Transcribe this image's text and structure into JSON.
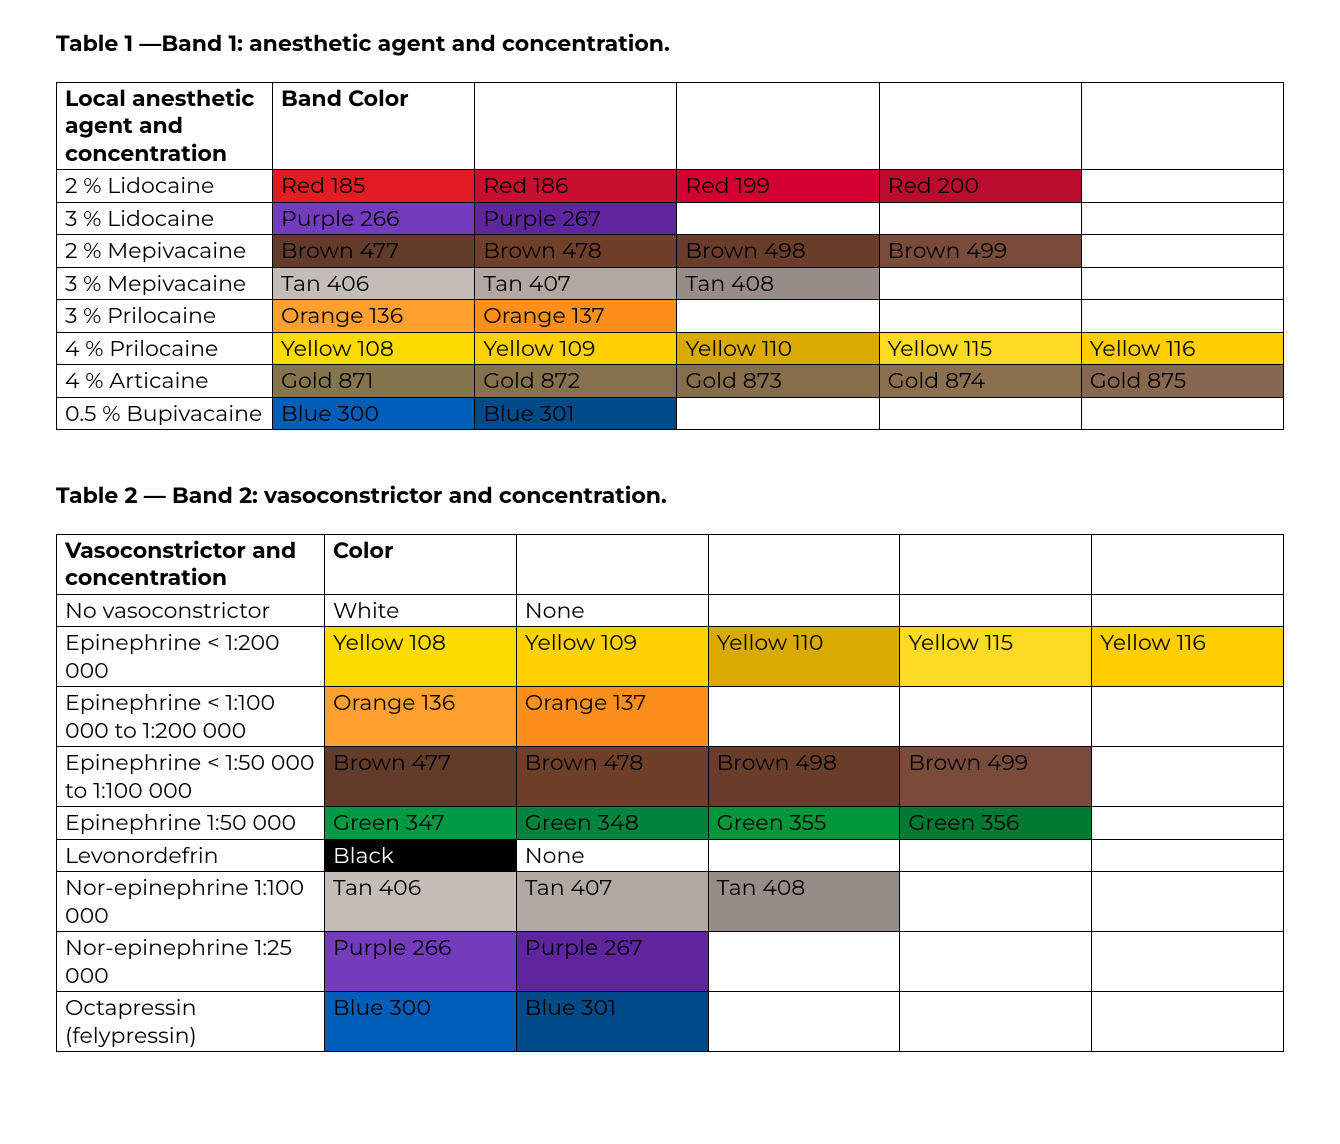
{
  "table1": {
    "title": "Table 1 —Band 1: anesthetic agent and concentration.",
    "header": [
      "Local anesthetic agent and concentration",
      "Band Color",
      "",
      "",
      "",
      ""
    ],
    "col_widths": [
      "t1-c0",
      "t1-cx",
      "t1-cx",
      "t1-cx",
      "t1-cx",
      "t1-cx"
    ],
    "rows": [
      {
        "label": "2 % Lidocaine",
        "cells": [
          {
            "text": "Red 185",
            "bg": "#e31b23",
            "fg": "#000000"
          },
          {
            "text": "Red 186",
            "bg": "#c8102e",
            "fg": "#000000"
          },
          {
            "text": "Red 199",
            "bg": "#d50032",
            "fg": "#000000"
          },
          {
            "text": "Red 200",
            "bg": "#ba0c2f",
            "fg": "#000000"
          },
          {
            "text": "",
            "bg": "#ffffff",
            "fg": "#000000"
          }
        ]
      },
      {
        "label": "3 % Lidocaine",
        "cells": [
          {
            "text": "Purple 266",
            "bg": "#753bbd",
            "fg": "#000000"
          },
          {
            "text": "Purple 267",
            "bg": "#5f259f",
            "fg": "#000000"
          },
          {
            "text": "",
            "bg": "#ffffff",
            "fg": "#000000"
          },
          {
            "text": "",
            "bg": "#ffffff",
            "fg": "#000000"
          },
          {
            "text": "",
            "bg": "#ffffff",
            "fg": "#000000"
          }
        ]
      },
      {
        "label": "2 % Mepivacaine",
        "cells": [
          {
            "text": "Brown 477",
            "bg": "#623b2a",
            "fg": "#000000"
          },
          {
            "text": "Brown 478",
            "bg": "#703f2a",
            "fg": "#000000"
          },
          {
            "text": "Brown 498",
            "bg": "#6a3d2b",
            "fg": "#000000"
          },
          {
            "text": "Brown 499",
            "bg": "#7a4b3a",
            "fg": "#000000"
          },
          {
            "text": "",
            "bg": "#ffffff",
            "fg": "#000000"
          }
        ]
      },
      {
        "label": "3 % Mepivacaine",
        "cells": [
          {
            "text": "Tan 406",
            "bg": "#c4bcb7",
            "fg": "#000000"
          },
          {
            "text": "Tan 407",
            "bg": "#b2a8a2",
            "fg": "#000000"
          },
          {
            "text": "Tan 408",
            "bg": "#978c87",
            "fg": "#000000"
          },
          {
            "text": "",
            "bg": "#ffffff",
            "fg": "#000000"
          },
          {
            "text": "",
            "bg": "#ffffff",
            "fg": "#000000"
          }
        ]
      },
      {
        "label": "3 % Prilocaine",
        "cells": [
          {
            "text": "Orange 136",
            "bg": "#ffa02f",
            "fg": "#000000"
          },
          {
            "text": "Orange 137",
            "bg": "#ff8f1c",
            "fg": "#000000"
          },
          {
            "text": "",
            "bg": "#ffffff",
            "fg": "#000000"
          },
          {
            "text": "",
            "bg": "#ffffff",
            "fg": "#000000"
          },
          {
            "text": "",
            "bg": "#ffffff",
            "fg": "#000000"
          }
        ]
      },
      {
        "label": "4 % Prilocaine",
        "cells": [
          {
            "text": "Yellow 108",
            "bg": "#fedb00",
            "fg": "#000000"
          },
          {
            "text": "Yellow 109",
            "bg": "#ffd100",
            "fg": "#000000"
          },
          {
            "text": "Yellow 110",
            "bg": "#daaa00",
            "fg": "#000000"
          },
          {
            "text": "Yellow 115",
            "bg": "#fdda24",
            "fg": "#000000"
          },
          {
            "text": "Yellow 116",
            "bg": "#ffcd00",
            "fg": "#000000"
          }
        ]
      },
      {
        "label": "4 % Articaine",
        "cells": [
          {
            "text": "Gold 871",
            "bg": "#84754e",
            "fg": "#000000"
          },
          {
            "text": "Gold 872",
            "bg": "#85714d",
            "fg": "#000000"
          },
          {
            "text": "Gold 873",
            "bg": "#866d4b",
            "fg": "#000000"
          },
          {
            "text": "Gold 874",
            "bg": "#8b6f4e",
            "fg": "#000000"
          },
          {
            "text": "Gold 875",
            "bg": "#87674f",
            "fg": "#000000"
          }
        ]
      },
      {
        "label": "0.5 % Bupivacaine",
        "cells": [
          {
            "text": "Blue 300",
            "bg": "#005eb8",
            "fg": "#000000"
          },
          {
            "text": "Blue 301",
            "bg": "#004b87",
            "fg": "#000000"
          },
          {
            "text": "",
            "bg": "#ffffff",
            "fg": "#000000"
          },
          {
            "text": "",
            "bg": "#ffffff",
            "fg": "#000000"
          },
          {
            "text": "",
            "bg": "#ffffff",
            "fg": "#000000"
          }
        ]
      }
    ]
  },
  "table2": {
    "title": "Table 2 — Band 2: vasoconstrictor and concentration.",
    "header": [
      "Vasoconstrictor and concentration",
      "Color",
      "",
      "",
      "",
      ""
    ],
    "col_widths": [
      "t2-c0",
      "t2-cx",
      "t2-cx",
      "t2-cx",
      "t2-cx",
      "t2-cx"
    ],
    "rows": [
      {
        "label": "No vasoconstrictor",
        "cells": [
          {
            "text": "White",
            "bg": "#ffffff",
            "fg": "#000000"
          },
          {
            "text": "None",
            "bg": "#ffffff",
            "fg": "#000000"
          },
          {
            "text": "",
            "bg": "#ffffff",
            "fg": "#000000"
          },
          {
            "text": "",
            "bg": "#ffffff",
            "fg": "#000000"
          },
          {
            "text": "",
            "bg": "#ffffff",
            "fg": "#000000"
          }
        ]
      },
      {
        "label": "Epinephrine < 1:200 000",
        "cells": [
          {
            "text": "Yellow 108",
            "bg": "#fedb00",
            "fg": "#000000"
          },
          {
            "text": "Yellow 109",
            "bg": "#ffd100",
            "fg": "#000000"
          },
          {
            "text": "Yellow 110",
            "bg": "#daaa00",
            "fg": "#000000"
          },
          {
            "text": "Yellow 115",
            "bg": "#fdda24",
            "fg": "#000000"
          },
          {
            "text": "Yellow 116",
            "bg": "#ffcd00",
            "fg": "#000000"
          }
        ]
      },
      {
        "label": "Epinephrine < 1:100 000 to 1:200 000",
        "cells": [
          {
            "text": "Orange 136",
            "bg": "#ffa02f",
            "fg": "#000000"
          },
          {
            "text": "Orange 137",
            "bg": "#ff8f1c",
            "fg": "#000000"
          },
          {
            "text": "",
            "bg": "#ffffff",
            "fg": "#000000"
          },
          {
            "text": "",
            "bg": "#ffffff",
            "fg": "#000000"
          },
          {
            "text": "",
            "bg": "#ffffff",
            "fg": "#000000"
          }
        ]
      },
      {
        "label": "Epinephrine < 1:50 000 to 1:100 000",
        "cells": [
          {
            "text": "Brown 477",
            "bg": "#623b2a",
            "fg": "#000000"
          },
          {
            "text": "Brown 478",
            "bg": "#703f2a",
            "fg": "#000000"
          },
          {
            "text": "Brown 498",
            "bg": "#6a3d2b",
            "fg": "#000000"
          },
          {
            "text": "Brown 499",
            "bg": "#7a4b3a",
            "fg": "#000000"
          },
          {
            "text": "",
            "bg": "#ffffff",
            "fg": "#000000"
          }
        ]
      },
      {
        "label": "Epinephrine 1:50 000",
        "cells": [
          {
            "text": "Green 347",
            "bg": "#009a44",
            "fg": "#000000"
          },
          {
            "text": "Green 348",
            "bg": "#00843d",
            "fg": "#000000"
          },
          {
            "text": "Green 355",
            "bg": "#009639",
            "fg": "#000000"
          },
          {
            "text": "Green 356",
            "bg": "#007a33",
            "fg": "#000000"
          },
          {
            "text": "",
            "bg": "#ffffff",
            "fg": "#000000"
          }
        ]
      },
      {
        "label": "Levonordefrin",
        "cells": [
          {
            "text": "Black",
            "bg": "#000000",
            "fg": "#ffffff"
          },
          {
            "text": "None",
            "bg": "#ffffff",
            "fg": "#000000"
          },
          {
            "text": "",
            "bg": "#ffffff",
            "fg": "#000000"
          },
          {
            "text": "",
            "bg": "#ffffff",
            "fg": "#000000"
          },
          {
            "text": "",
            "bg": "#ffffff",
            "fg": "#000000"
          }
        ]
      },
      {
        "label": "Nor-epinephrine 1:100 000",
        "cells": [
          {
            "text": "Tan 406",
            "bg": "#c4bcb7",
            "fg": "#000000"
          },
          {
            "text": "Tan 407",
            "bg": "#b2a8a2",
            "fg": "#000000"
          },
          {
            "text": "Tan 408",
            "bg": "#978c87",
            "fg": "#000000"
          },
          {
            "text": "",
            "bg": "#ffffff",
            "fg": "#000000"
          },
          {
            "text": "",
            "bg": "#ffffff",
            "fg": "#000000"
          }
        ]
      },
      {
        "label": "Nor-epinephrine 1:25 000",
        "cells": [
          {
            "text": "Purple 266",
            "bg": "#753bbd",
            "fg": "#000000"
          },
          {
            "text": "Purple 267",
            "bg": "#5f259f",
            "fg": "#000000"
          },
          {
            "text": "",
            "bg": "#ffffff",
            "fg": "#000000"
          },
          {
            "text": "",
            "bg": "#ffffff",
            "fg": "#000000"
          },
          {
            "text": "",
            "bg": "#ffffff",
            "fg": "#000000"
          }
        ]
      },
      {
        "label": "Octapressin (felypressin)",
        "cells": [
          {
            "text": "Blue 300",
            "bg": "#005eb8",
            "fg": "#000000"
          },
          {
            "text": "Blue 301",
            "bg": "#004b87",
            "fg": "#000000"
          },
          {
            "text": "",
            "bg": "#ffffff",
            "fg": "#000000"
          },
          {
            "text": "",
            "bg": "#ffffff",
            "fg": "#000000"
          },
          {
            "text": "",
            "bg": "#ffffff",
            "fg": "#000000"
          }
        ]
      }
    ]
  }
}
